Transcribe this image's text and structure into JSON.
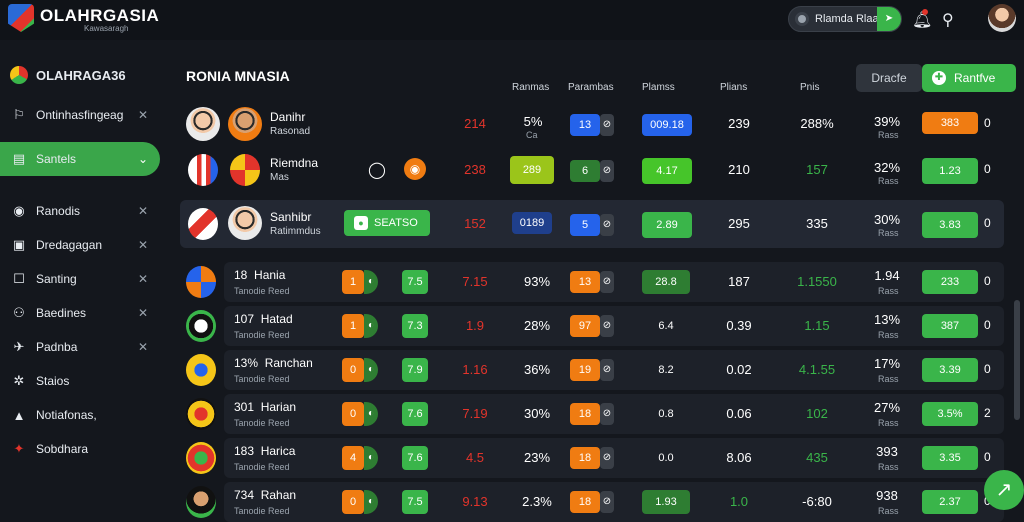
{
  "app": {
    "title": "OLAHRGASIA",
    "subtitle": "Kawasaragh"
  },
  "topbar": {
    "search_text": "Rlamda Rlaai",
    "go_icon": "arrow-icon"
  },
  "sidebar": {
    "header": "OLAHRAGA36",
    "items": [
      {
        "label": "Ontinhasfingeag",
        "icon": "rocket-icon",
        "closable": true
      },
      {
        "label": "Santels",
        "icon": "doc-icon",
        "closable": true,
        "active": true
      },
      {
        "label": "Ranodis",
        "icon": "circle-icon",
        "closable": true
      },
      {
        "label": "Dredagagan",
        "icon": "image-icon",
        "closable": true
      },
      {
        "label": "Santing",
        "icon": "square-icon",
        "closable": true
      },
      {
        "label": "Baedines",
        "icon": "people-icon",
        "closable": true
      },
      {
        "label": "Padnba",
        "icon": "plane-icon",
        "closable": true
      },
      {
        "label": "Staios",
        "icon": "gear-icon",
        "closable": false
      },
      {
        "label": "Notiafonas,",
        "icon": "bell-icon",
        "closable": false
      },
      {
        "label": "Sobdhara",
        "icon": "fire-icon",
        "closable": false
      }
    ]
  },
  "main": {
    "title": "RONIA MNASIA",
    "btn_dark": "Dracfe",
    "btn_green": "Rantfve",
    "columns": [
      "Ranmas",
      "Parambas",
      "Plamss",
      "Plians",
      "Pnis"
    ],
    "featured": [
      {
        "name": "Danihr",
        "sub": "Rasonad",
        "v1": "214",
        "v2": "5%",
        "v2sub": "Ca",
        "c1": "13",
        "c2": "009.18",
        "v3": "239",
        "v4": "288%",
        "v5": "39%",
        "v5sub": "Rass",
        "pill": "383",
        "tail": "0"
      },
      {
        "name": "Riemdna",
        "sub": "Mas",
        "v1": "238",
        "c0": "289",
        "c1": "6",
        "c2": "4.17",
        "v3": "210",
        "v4": "157",
        "v5": "32%",
        "v5sub": "Rass",
        "pill": "1.23",
        "tail": "0"
      },
      {
        "name": "Sanhibr",
        "sub": "Ratimmdus",
        "tag": "SEATSO",
        "v1": "152",
        "c0": "0189",
        "c1": "5",
        "c2": "2.89",
        "v3": "295",
        "v4": "335",
        "v5": "30%",
        "v5sub": "Rass",
        "pill": "3.83",
        "tail": "0"
      }
    ],
    "rows": [
      {
        "num": "18",
        "name": "Hania",
        "sub": "Tanodie Reed",
        "a": "1",
        "b": "7.5",
        "v1": "7.15",
        "v2": "93%",
        "c1": "13",
        "c2": "28.8",
        "v3": "187",
        "v4": "1.1550",
        "v5": "1.94",
        "v5sub": "Rass",
        "pill": "233",
        "tail": "0"
      },
      {
        "num": "107",
        "name": "Hatad",
        "sub": "Tanodie Reed",
        "a": "1",
        "b": "7.3",
        "v1": "1.9",
        "v2": "28%",
        "c1": "97",
        "c2": "6.4",
        "v3": "0.39",
        "v4": "1.15",
        "v5": "13%",
        "v5sub": "Rass",
        "pill": "387",
        "tail": "0"
      },
      {
        "num": "13%",
        "name": "Ranchan",
        "sub": "Tanodie Reed",
        "a": "0",
        "b": "7.9",
        "v1": "1.16",
        "v2": "36%",
        "c1": "19",
        "c2": "8.2",
        "v3": "0.02",
        "v4": "4.1.55",
        "v5": "17%",
        "v5sub": "Rass",
        "pill": "3.39",
        "tail": "0"
      },
      {
        "num": "301",
        "name": "Harian",
        "sub": "Tanodie Reed",
        "a": "0",
        "b": "7.6",
        "v1": "7.19",
        "v2": "30%",
        "c1": "18",
        "c2": "0.8",
        "v3": "0.06",
        "v4": "102",
        "v5": "27%",
        "v5sub": "Rass",
        "pill": "3.5%",
        "tail": "2"
      },
      {
        "num": "183",
        "name": "Harica",
        "sub": "Tanodie Reed",
        "a": "4",
        "b": "7.6",
        "v1": "4.5",
        "v2": "23%",
        "c1": "18",
        "c2": "0.0",
        "v3": "8.06",
        "v4": "435",
        "v5": "393",
        "v5sub": "Rass",
        "pill": "3.35",
        "tail": "0"
      },
      {
        "num": "734",
        "name": "Rahan",
        "sub": "Tanodie Reed",
        "a": "0",
        "b": "7.5",
        "v1": "9.13",
        "v2": "2.3%",
        "c1": "18",
        "c2": "1.93",
        "v3": "1.0",
        "v4": "-6:80",
        "v5": "938",
        "v5sub": "Rass",
        "pill": "2.37",
        "tail": "0"
      }
    ]
  },
  "colors": {
    "accent": "#3ab54a",
    "orange": "#f07c12",
    "red": "#e2342b",
    "blue": "#2563eb"
  }
}
